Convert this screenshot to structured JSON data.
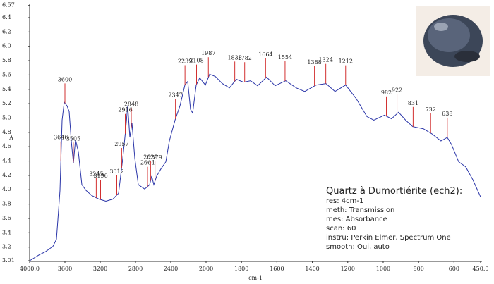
{
  "chart_data": {
    "type": "line",
    "xlabel": "cm-1",
    "ylabel": "A",
    "xlim": [
      4000,
      450
    ],
    "x_scale_break": 2000,
    "xticks": [
      {
        "value": 4000,
        "label": "4000.0"
      },
      3600,
      3200,
      2800,
      2400,
      2000,
      1800,
      1600,
      1400,
      1200,
      1000,
      800,
      600,
      {
        "value": 450,
        "label": "450.0"
      }
    ],
    "ylim": [
      3.01,
      6.57
    ],
    "yticks": [
      3.01,
      3.2,
      3.4,
      3.6,
      3.8,
      {
        "value": 4,
        "label": "4.0"
      },
      4.2,
      4.4,
      4.6,
      4.8,
      {
        "value": 5,
        "label": "5.0"
      },
      5.2,
      5.4,
      5.6,
      5.8,
      {
        "value": 6,
        "label": "6.0"
      },
      6.2,
      6.4,
      6.57
    ],
    "color": "#2a35a8",
    "peak_color": "#d23030",
    "x": [
      4000,
      3896,
      3816,
      3736,
      3696,
      3656,
      3632,
      3608,
      3576,
      3552,
      3528,
      3504,
      3480,
      3448,
      3408,
      3360,
      3296,
      3216,
      3136,
      3056,
      2992,
      2944,
      2912,
      2888,
      2864,
      2840,
      2808,
      2768,
      2696,
      2640,
      2616,
      2592,
      2560,
      2512,
      2456,
      2416,
      2352,
      2296,
      2240,
      2208,
      2176,
      2152,
      2112,
      2072,
      2008,
      1980,
      1948,
      1908,
      1868,
      1829,
      1789,
      1749,
      1709,
      1658,
      1610,
      1550,
      1491,
      1443,
      1379,
      1323,
      1272,
      1212,
      1152,
      1092,
      1053,
      993,
      953,
      913,
      873,
      833,
      773,
      725,
      674,
      638,
      614,
      574,
      534,
      494,
      450
    ],
    "values": [
      3.01,
      3.09,
      3.14,
      3.21,
      3.31,
      3.99,
      4.97,
      5.22,
      5.17,
      5.09,
      4.68,
      4.37,
      4.7,
      4.53,
      4.07,
      3.99,
      3.92,
      3.87,
      3.84,
      3.87,
      3.95,
      4.44,
      4.83,
      5.17,
      4.73,
      4.93,
      4.44,
      4.07,
      4.01,
      4.07,
      4.19,
      4.07,
      4.19,
      4.29,
      4.39,
      4.68,
      4.97,
      5.17,
      5.46,
      5.51,
      5.12,
      5.07,
      5.46,
      5.56,
      5.46,
      5.61,
      5.58,
      5.48,
      5.42,
      5.54,
      5.5,
      5.52,
      5.45,
      5.57,
      5.45,
      5.52,
      5.42,
      5.37,
      5.46,
      5.48,
      5.37,
      5.46,
      5.27,
      5.02,
      4.97,
      5.04,
      4.99,
      5.08,
      4.97,
      4.88,
      4.85,
      4.78,
      4.68,
      4.73,
      4.63,
      4.39,
      4.32,
      4.14,
      3.9
    ],
    "peaks": [
      3646,
      3600,
      3505,
      3245,
      3196,
      3012,
      2957,
      2916,
      2848,
      2664,
      2629,
      2579,
      2347,
      2239,
      2108,
      1987,
      1838,
      1782,
      1664,
      1554,
      1388,
      1324,
      1212,
      982,
      922,
      831,
      732,
      638
    ],
    "info_title": "Quartz à Dumortiérite (ech2):",
    "info_lines": [
      "res: 4cm-1",
      "meth: Transmission",
      "mes: Absorbance",
      "scan: 60",
      "instru: Perkin Elmer, Spectrum One",
      "smooth: Oui, auto"
    ]
  }
}
